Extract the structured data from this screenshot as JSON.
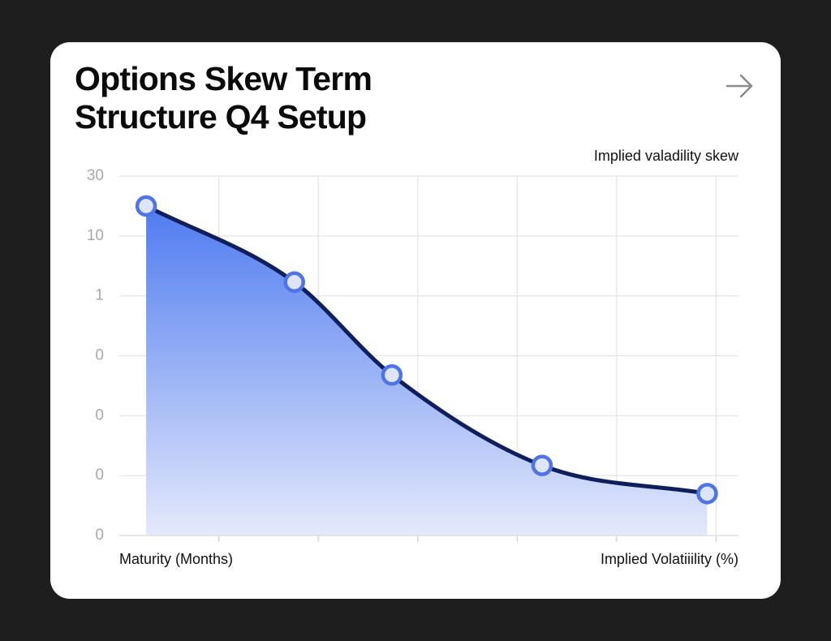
{
  "chart_data": {
    "type": "area",
    "title": "Options Skew Term Structure Q4 Setup",
    "subtitle": "Implied valadility skew",
    "x_label": "Maturity (Months)",
    "y_label": "Implied Volatiiility (%)",
    "x": [
      0.27,
      1.76,
      2.74,
      4.25,
      5.91
    ],
    "values": [
      5.5,
      4.23,
      2.68,
      1.17,
      0.7
    ],
    "color": "#0f1f5c",
    "fill_top": "#4f7bf0",
    "fill_bottom": "#e4e9fb",
    "marker_color": "#4f74e8",
    "xlim": [
      0,
      6.2
    ],
    "xticks": [
      1,
      2,
      3,
      4,
      5,
      6
    ],
    "ylim": [
      0,
      6
    ],
    "yticks": [
      {
        "value": 0,
        "label": "0"
      },
      {
        "value": 1,
        "label": "0"
      },
      {
        "value": 2,
        "label": "0"
      },
      {
        "value": 3,
        "label": "0"
      },
      {
        "value": 4,
        "label": "1"
      },
      {
        "value": 5,
        "label": "10"
      },
      {
        "value": 6,
        "label": "30"
      }
    ],
    "grid": true
  }
}
